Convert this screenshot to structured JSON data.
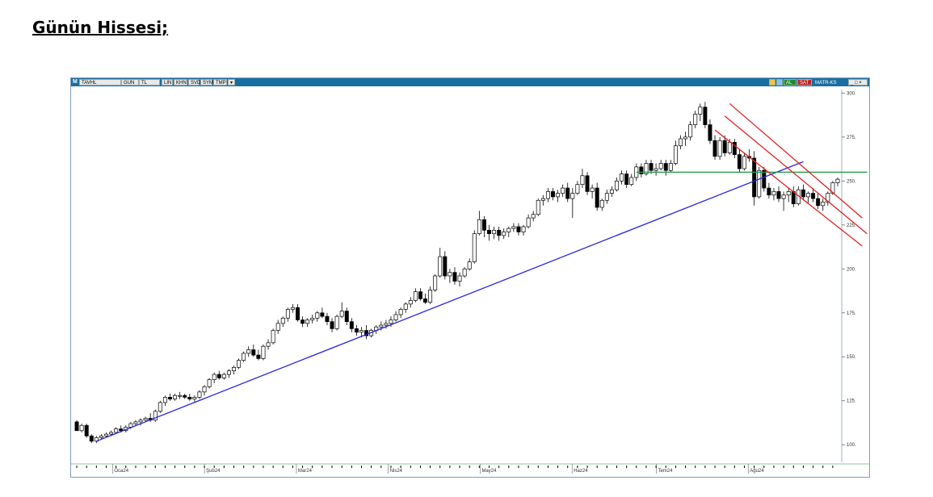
{
  "heading": "Günün Hissesi;",
  "toolbar": {
    "logo": "M",
    "symbol": "TAVHL",
    "period": "GUN",
    "currency": "TL",
    "buttons": [
      "LIN",
      "KHN",
      "SVD",
      "SYM",
      "TMP"
    ],
    "right": {
      "buy": "AL",
      "sell": "SAT",
      "name": "MATR-KS"
    },
    "colors": {
      "bar": "#1a6fa0",
      "buy": "#1e8a2e",
      "sell": "#c0201e"
    }
  },
  "chart_data": {
    "type": "candlestick",
    "title": "",
    "xlabel": "",
    "ylabel": "",
    "ylim": [
      90,
      302
    ],
    "y_ticks": [
      "100.",
      "125.",
      "150.",
      "175.",
      "200.",
      "225.",
      "250.",
      "275.",
      "300."
    ],
    "x_tick_labels": [
      "Oca24",
      "Şub24",
      "Mar24",
      "Nis24",
      "May24",
      "Haz24",
      "Tem24",
      "Ağu24"
    ],
    "grid": false,
    "candles": [
      [
        113,
        114,
        108,
        108
      ],
      [
        108,
        112,
        107,
        111
      ],
      [
        111,
        112,
        104,
        105
      ],
      [
        105,
        106,
        101,
        102
      ],
      [
        102,
        105,
        101,
        104
      ],
      [
        104,
        106,
        103,
        105
      ],
      [
        105,
        107,
        104,
        106
      ],
      [
        106,
        108,
        105,
        107
      ],
      [
        107,
        110,
        106,
        109
      ],
      [
        109,
        111,
        107,
        108
      ],
      [
        108,
        111,
        107,
        110
      ],
      [
        110,
        113,
        109,
        112
      ],
      [
        112,
        114,
        111,
        113
      ],
      [
        113,
        115,
        111,
        114
      ],
      [
        114,
        116,
        113,
        115
      ],
      [
        115,
        118,
        113,
        114
      ],
      [
        114,
        120,
        113,
        119
      ],
      [
        119,
        125,
        118,
        124
      ],
      [
        124,
        128,
        122,
        127
      ],
      [
        127,
        129,
        125,
        126
      ],
      [
        126,
        129,
        125,
        128
      ],
      [
        128,
        130,
        126,
        128
      ],
      [
        128,
        129,
        126,
        127
      ],
      [
        127,
        129,
        125,
        126
      ],
      [
        126,
        128,
        124,
        127
      ],
      [
        127,
        131,
        126,
        130
      ],
      [
        130,
        134,
        128,
        133
      ],
      [
        133,
        138,
        132,
        137
      ],
      [
        137,
        141,
        135,
        140
      ],
      [
        140,
        142,
        137,
        138
      ],
      [
        138,
        141,
        137,
        140
      ],
      [
        140,
        143,
        138,
        142
      ],
      [
        142,
        145,
        140,
        144
      ],
      [
        144,
        149,
        143,
        148
      ],
      [
        148,
        153,
        147,
        152
      ],
      [
        152,
        156,
        150,
        154
      ],
      [
        154,
        157,
        150,
        151
      ],
      [
        151,
        154,
        148,
        149
      ],
      [
        149,
        157,
        148,
        156
      ],
      [
        156,
        160,
        154,
        158
      ],
      [
        158,
        166,
        157,
        165
      ],
      [
        165,
        171,
        163,
        169
      ],
      [
        169,
        173,
        167,
        172
      ],
      [
        172,
        178,
        170,
        177
      ],
      [
        177,
        180,
        175,
        178
      ],
      [
        178,
        180,
        170,
        171
      ],
      [
        171,
        173,
        167,
        169
      ],
      [
        169,
        172,
        167,
        171
      ],
      [
        171,
        174,
        169,
        172
      ],
      [
        172,
        176,
        170,
        175
      ],
      [
        175,
        178,
        172,
        173
      ],
      [
        173,
        175,
        168,
        170
      ],
      [
        170,
        172,
        164,
        166
      ],
      [
        166,
        174,
        165,
        173
      ],
      [
        173,
        181,
        172,
        176
      ],
      [
        176,
        178,
        168,
        170
      ],
      [
        170,
        172,
        164,
        166
      ],
      [
        166,
        168,
        162,
        164
      ],
      [
        164,
        167,
        161,
        165
      ],
      [
        165,
        168,
        160,
        162
      ],
      [
        162,
        166,
        161,
        165
      ],
      [
        165,
        168,
        163,
        167
      ],
      [
        167,
        170,
        165,
        168
      ],
      [
        168,
        171,
        166,
        169
      ],
      [
        169,
        173,
        167,
        171
      ],
      [
        171,
        176,
        170,
        174
      ],
      [
        174,
        178,
        172,
        177
      ],
      [
        177,
        181,
        175,
        180
      ],
      [
        180,
        184,
        178,
        182
      ],
      [
        182,
        189,
        181,
        187
      ],
      [
        187,
        189,
        182,
        183
      ],
      [
        183,
        186,
        180,
        181
      ],
      [
        181,
        190,
        180,
        188
      ],
      [
        188,
        197,
        187,
        196
      ],
      [
        196,
        212,
        195,
        207
      ],
      [
        207,
        210,
        194,
        196
      ],
      [
        196,
        200,
        192,
        198
      ],
      [
        198,
        201,
        191,
        193
      ],
      [
        193,
        198,
        190,
        196
      ],
      [
        196,
        201,
        195,
        200
      ],
      [
        200,
        206,
        199,
        204
      ],
      [
        204,
        222,
        203,
        220
      ],
      [
        220,
        233,
        219,
        228
      ],
      [
        228,
        230,
        218,
        222
      ],
      [
        222,
        225,
        216,
        220
      ],
      [
        220,
        224,
        217,
        222
      ],
      [
        222,
        224,
        216,
        219
      ],
      [
        219,
        223,
        217,
        221
      ],
      [
        221,
        224,
        218,
        223
      ],
      [
        223,
        226,
        221,
        224
      ],
      [
        224,
        226,
        219,
        221
      ],
      [
        221,
        225,
        219,
        224
      ],
      [
        224,
        231,
        223,
        229
      ],
      [
        229,
        233,
        227,
        231
      ],
      [
        231,
        240,
        230,
        239
      ],
      [
        239,
        242,
        236,
        240
      ],
      [
        240,
        246,
        238,
        244
      ],
      [
        244,
        246,
        239,
        241
      ],
      [
        241,
        245,
        238,
        243
      ],
      [
        243,
        248,
        241,
        246
      ],
      [
        246,
        249,
        238,
        240
      ],
      [
        240,
        246,
        229,
        243
      ],
      [
        243,
        250,
        242,
        248
      ],
      [
        248,
        257,
        246,
        253
      ],
      [
        253,
        255,
        242,
        244
      ],
      [
        244,
        248,
        240,
        246
      ],
      [
        246,
        249,
        233,
        235
      ],
      [
        235,
        240,
        233,
        239
      ],
      [
        239,
        245,
        237,
        243
      ],
      [
        243,
        247,
        241,
        245
      ],
      [
        245,
        252,
        244,
        250
      ],
      [
        250,
        256,
        248,
        254
      ],
      [
        254,
        256,
        246,
        248
      ],
      [
        248,
        254,
        247,
        252
      ],
      [
        252,
        260,
        250,
        258
      ],
      [
        258,
        260,
        252,
        254
      ],
      [
        254,
        262,
        253,
        260
      ],
      [
        260,
        262,
        254,
        256
      ],
      [
        256,
        260,
        253,
        257
      ],
      [
        257,
        262,
        256,
        260
      ],
      [
        260,
        262,
        253,
        256
      ],
      [
        256,
        262,
        255,
        260
      ],
      [
        260,
        273,
        259,
        270
      ],
      [
        270,
        276,
        268,
        274
      ],
      [
        274,
        278,
        270,
        275
      ],
      [
        275,
        284,
        273,
        282
      ],
      [
        282,
        290,
        280,
        288
      ],
      [
        288,
        294,
        284,
        292
      ],
      [
        292,
        295,
        280,
        282
      ],
      [
        282,
        285,
        271,
        273
      ],
      [
        273,
        276,
        262,
        264
      ],
      [
        264,
        275,
        262,
        273
      ],
      [
        273,
        276,
        264,
        266
      ],
      [
        266,
        274,
        265,
        272
      ],
      [
        272,
        274,
        263,
        265
      ],
      [
        265,
        268,
        255,
        257
      ],
      [
        257,
        266,
        256,
        264
      ],
      [
        264,
        268,
        261,
        263
      ],
      [
        263,
        267,
        236,
        241
      ],
      [
        241,
        258,
        240,
        256
      ],
      [
        256,
        258,
        244,
        246
      ],
      [
        246,
        249,
        240,
        242
      ],
      [
        242,
        246,
        239,
        244
      ],
      [
        244,
        247,
        238,
        240
      ],
      [
        240,
        244,
        233,
        242
      ],
      [
        242,
        246,
        238,
        244
      ],
      [
        244,
        247,
        235,
        237
      ],
      [
        237,
        247,
        236,
        245
      ],
      [
        245,
        248,
        239,
        241
      ],
      [
        241,
        244,
        237,
        243
      ],
      [
        243,
        246,
        238,
        240
      ],
      [
        240,
        243,
        234,
        236
      ],
      [
        236,
        240,
        233,
        238
      ],
      [
        238,
        244,
        236,
        243
      ],
      [
        243,
        250,
        242,
        249
      ],
      [
        249,
        252,
        247,
        251
      ]
    ],
    "lines": [
      {
        "color": "#2626e0",
        "from": [
          4,
          102
        ],
        "to": [
          148,
          261
        ]
      },
      {
        "color": "#1f9a48",
        "from": [
          114,
          255
        ],
        "to": [
          161,
          255
        ]
      },
      {
        "color": "#e42020",
        "from": [
          133,
          294
        ],
        "to": [
          160,
          229
        ]
      },
      {
        "color": "#e42020",
        "from": [
          132,
          287
        ],
        "to": [
          161,
          220
        ]
      },
      {
        "color": "#e42020",
        "from": [
          130,
          279
        ],
        "to": [
          160,
          213
        ]
      }
    ]
  }
}
